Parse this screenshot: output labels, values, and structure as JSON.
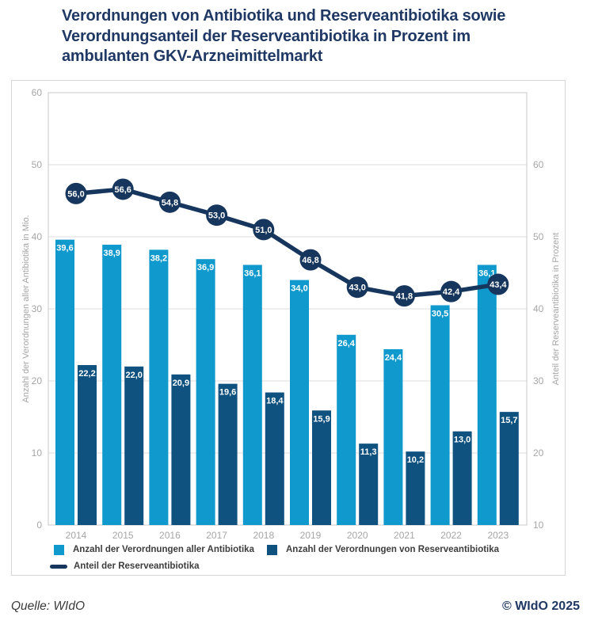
{
  "title_lines": [
    "Verordnungen von Antibiotika und Reserveantibiotika sowie",
    "Verordnungsanteil der Reserveantibiotika in Prozent im",
    "ambulanten GKV-Arzneimittelmarkt"
  ],
  "footer": {
    "source": "Quelle: WIdO",
    "copyright": "© WIdO 2025"
  },
  "colors": {
    "title_navy": "#1F3864",
    "bar_light_blue": "#1099CC",
    "bar_dark_blue": "#0F517F",
    "line_navy": "#16365D",
    "axis_gray": "#A6A6A6",
    "gridline_gray": "#DCDCDC",
    "plot_border_gray": "#C8C8C8",
    "legend_text": "#3D3D3D"
  },
  "chart_data": {
    "type": "bar",
    "subtype": "grouped-bars-with-line-overlay",
    "categories": [
      "2014",
      "2015",
      "2016",
      "2017",
      "2018",
      "2019",
      "2020",
      "2021",
      "2022",
      "2023"
    ],
    "series": [
      {
        "name": "Anzahl der Verordnungen aller Antibiotika",
        "type": "bar",
        "axis": "left",
        "color": "#1099CC",
        "values": [
          39.6,
          38.9,
          38.2,
          36.9,
          36.1,
          34.0,
          26.4,
          24.4,
          30.5,
          36.1
        ]
      },
      {
        "name": "Anzahl der Verordnungen von Reserveantibiotika",
        "type": "bar",
        "axis": "left",
        "color": "#0F517F",
        "values": [
          22.2,
          22.0,
          20.9,
          19.6,
          18.4,
          15.9,
          11.3,
          10.2,
          13.0,
          15.7
        ]
      },
      {
        "name": "Anteil der Reserveantibiotika",
        "type": "line",
        "axis": "right",
        "color": "#16365D",
        "values": [
          56.0,
          56.6,
          54.8,
          53.0,
          51.0,
          46.8,
          43.0,
          41.8,
          42.4,
          43.4
        ]
      }
    ],
    "left_axis": {
      "label": "Anzahl der Verordnungen aller Antibiotika in Mio.",
      "min": 0,
      "max": 60,
      "ticks": [
        0,
        10,
        20,
        30,
        40,
        50,
        60
      ]
    },
    "right_axis": {
      "label": "Anteil der Reserveantibiotika in Prozent",
      "min": 10,
      "max": 70,
      "ticks": [
        10,
        20,
        30,
        40,
        50,
        60
      ]
    },
    "grid": "horizontal",
    "legend_position": "bottom-left",
    "value_labels": "on",
    "decimal_separator": ","
  }
}
